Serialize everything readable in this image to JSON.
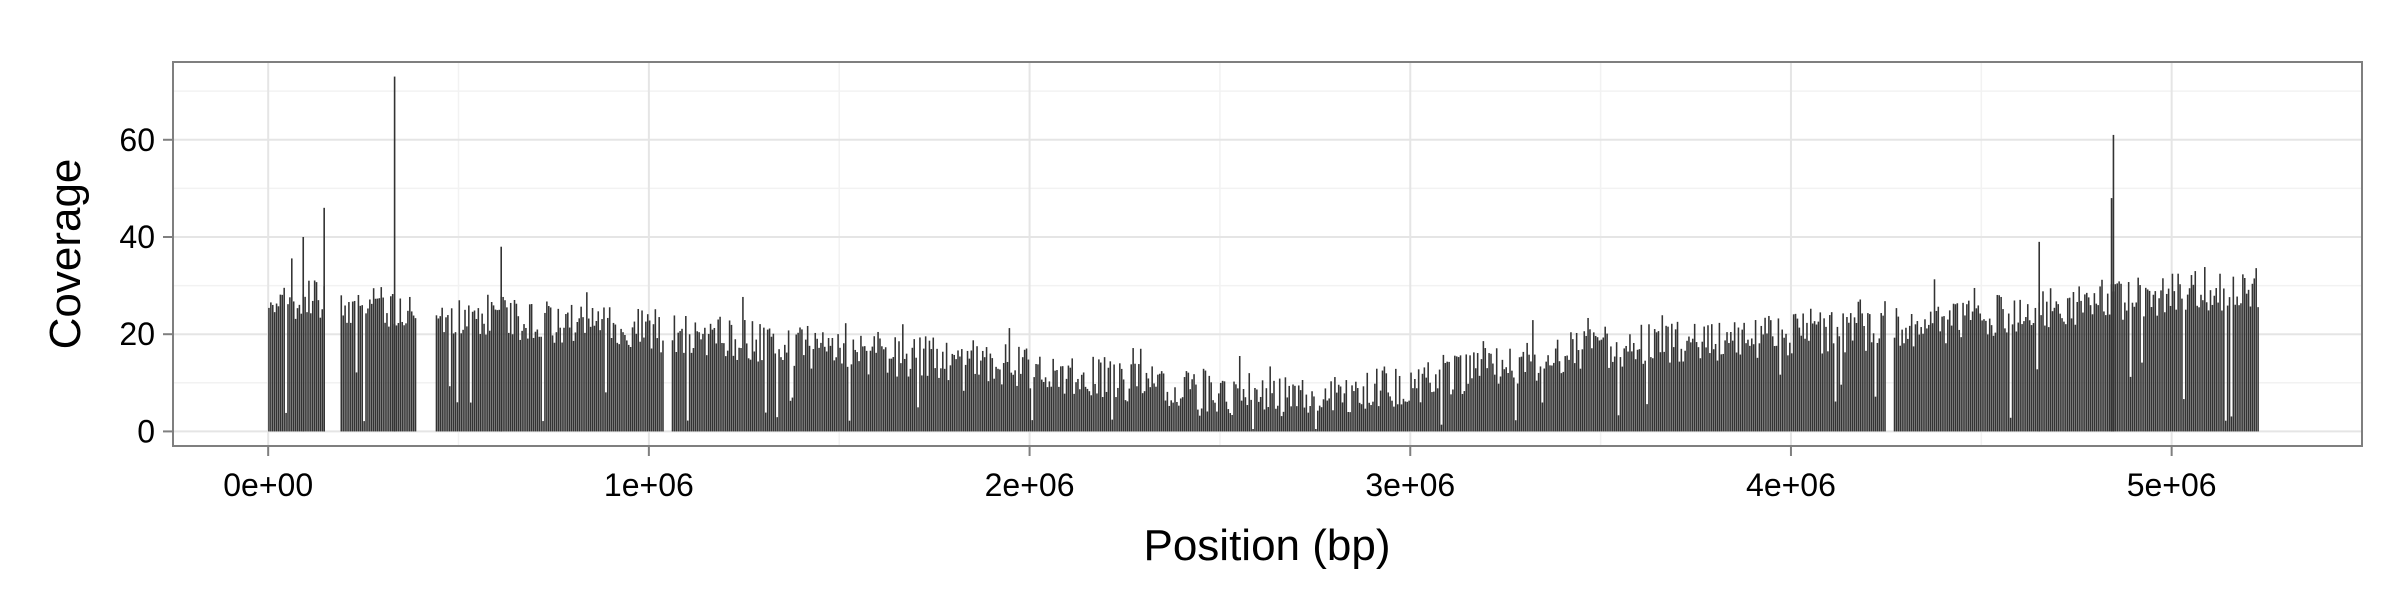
{
  "chart_data": {
    "type": "bar",
    "title": "",
    "xlabel": "Position (bp)",
    "ylabel": "Coverage",
    "xlim": [
      -250000,
      5500000
    ],
    "ylim": [
      -3,
      76
    ],
    "x_ticks": [
      {
        "value": 0,
        "label": "0e+00"
      },
      {
        "value": 1000000,
        "label": "1e+06"
      },
      {
        "value": 2000000,
        "label": "2e+06"
      },
      {
        "value": 3000000,
        "label": "3e+06"
      },
      {
        "value": 4000000,
        "label": "4e+06"
      },
      {
        "value": 5000000,
        "label": "5e+06"
      }
    ],
    "y_ticks": [
      {
        "value": 0,
        "label": "0"
      },
      {
        "value": 20,
        "label": "20"
      },
      {
        "value": 40,
        "label": "40"
      },
      {
        "value": 60,
        "label": "60"
      }
    ],
    "grid": true,
    "bar_color": "#333333",
    "x_range": [
      0,
      5230000
    ],
    "bin_width": 5000,
    "gaps": [
      [
        150000,
        190000
      ],
      [
        390000,
        440000
      ],
      [
        1040000,
        1060000
      ],
      [
        4250000,
        4270000
      ]
    ],
    "baseline_profile": [
      [
        0,
        28
      ],
      [
        150000,
        27
      ],
      [
        300000,
        26
      ],
      [
        500000,
        24
      ],
      [
        800000,
        22
      ],
      [
        1000000,
        21
      ],
      [
        1300000,
        18
      ],
      [
        1600000,
        16
      ],
      [
        1900000,
        14
      ],
      [
        2200000,
        11
      ],
      [
        2500000,
        8
      ],
      [
        2700000,
        7
      ],
      [
        3000000,
        10
      ],
      [
        3200000,
        13
      ],
      [
        3500000,
        17
      ],
      [
        3800000,
        19
      ],
      [
        4000000,
        20
      ],
      [
        4300000,
        21
      ],
      [
        4500000,
        23
      ],
      [
        4700000,
        26
      ],
      [
        5000000,
        28
      ],
      [
        5230000,
        30
      ]
    ],
    "peaks": [
      {
        "x": 90000,
        "y": 40
      },
      {
        "x": 145000,
        "y": 46
      },
      {
        "x": 330000,
        "y": 73
      },
      {
        "x": 610000,
        "y": 38
      },
      {
        "x": 4650000,
        "y": 39
      },
      {
        "x": 4840000,
        "y": 48
      },
      {
        "x": 4845000,
        "y": 61
      }
    ]
  }
}
